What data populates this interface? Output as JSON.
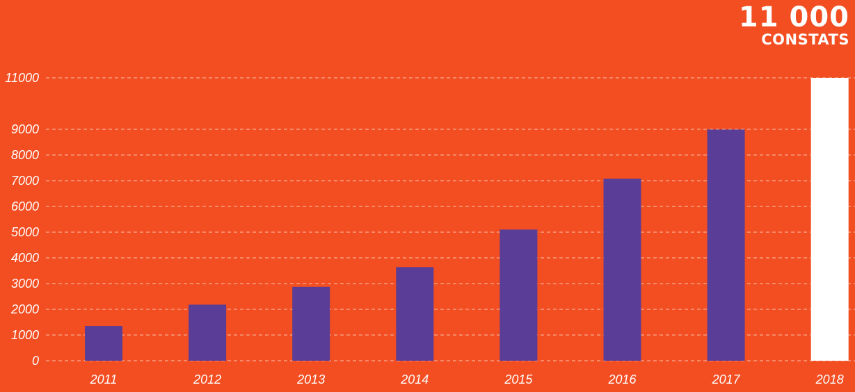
{
  "header": {
    "value": "11 000",
    "label": "CONSTATS"
  },
  "colors": {
    "background": "#f24e22",
    "bar": "#5a3d96",
    "highlight_bar": "#ffffff",
    "grid": "#f9c1ae",
    "text": "#ffffff"
  },
  "chart_data": {
    "type": "bar",
    "categories": [
      "2011",
      "2012",
      "2013",
      "2014",
      "2015",
      "2016",
      "2017",
      "2018"
    ],
    "values": [
      1350,
      2180,
      2870,
      3640,
      5100,
      7080,
      8990,
      11000
    ],
    "highlight_index": 7,
    "y_ticks": [
      0,
      1000,
      2000,
      3000,
      4000,
      5000,
      6000,
      7000,
      8000,
      9000,
      11000
    ],
    "ylim": [
      0,
      11000
    ],
    "grid": true,
    "grid_style": "dashed",
    "title": "",
    "xlabel": "",
    "ylabel": ""
  }
}
